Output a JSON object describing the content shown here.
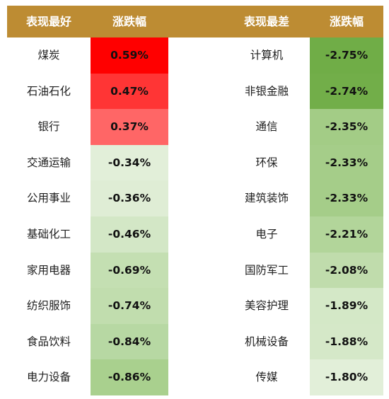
{
  "header": {
    "best_label": "表现最好",
    "best_change_label": "涨跌幅",
    "worst_label": "表现最差",
    "worst_change_label": "涨跌幅"
  },
  "best": [
    {
      "name": "煤炭",
      "change": "0.59%",
      "color": "#ff0000"
    },
    {
      "name": "石油石化",
      "change": "0.47%",
      "color": "#ff3535"
    },
    {
      "name": "银行",
      "change": "0.37%",
      "color": "#ff6666"
    },
    {
      "name": "交通运输",
      "change": "-0.34%",
      "color": "#e2efd9"
    },
    {
      "name": "公用事业",
      "change": "-0.36%",
      "color": "#dfedd5"
    },
    {
      "name": "基础化工",
      "change": "-0.46%",
      "color": "#d3e7c6"
    },
    {
      "name": "家用电器",
      "change": "-0.69%",
      "color": "#c4dfb2"
    },
    {
      "name": "纺织服饰",
      "change": "-0.74%",
      "color": "#c1ddae"
    },
    {
      "name": "食品饮料",
      "change": "-0.84%",
      "color": "#b7d8a3"
    },
    {
      "name": "电力设备",
      "change": "-0.86%",
      "color": "#a9d08e"
    }
  ],
  "worst": [
    {
      "name": "计算机",
      "change": "-2.75%",
      "color": "#70ad47"
    },
    {
      "name": "非银金融",
      "change": "-2.74%",
      "color": "#72ae49"
    },
    {
      "name": "通信",
      "change": "-2.35%",
      "color": "#a3cc86"
    },
    {
      "name": "环保",
      "change": "-2.33%",
      "color": "#a5cd89"
    },
    {
      "name": "建筑装饰",
      "change": "-2.33%",
      "color": "#a5cd89"
    },
    {
      "name": "电子",
      "change": "-2.21%",
      "color": "#b2d59a"
    },
    {
      "name": "国防军工",
      "change": "-2.08%",
      "color": "#c0dcac"
    },
    {
      "name": "美容护理",
      "change": "-1.89%",
      "color": "#d4e8c7"
    },
    {
      "name": "机械设备",
      "change": "-1.88%",
      "color": "#d5e8c8"
    },
    {
      "name": "传媒",
      "change": "-1.80%",
      "color": "#e2efd9"
    }
  ]
}
